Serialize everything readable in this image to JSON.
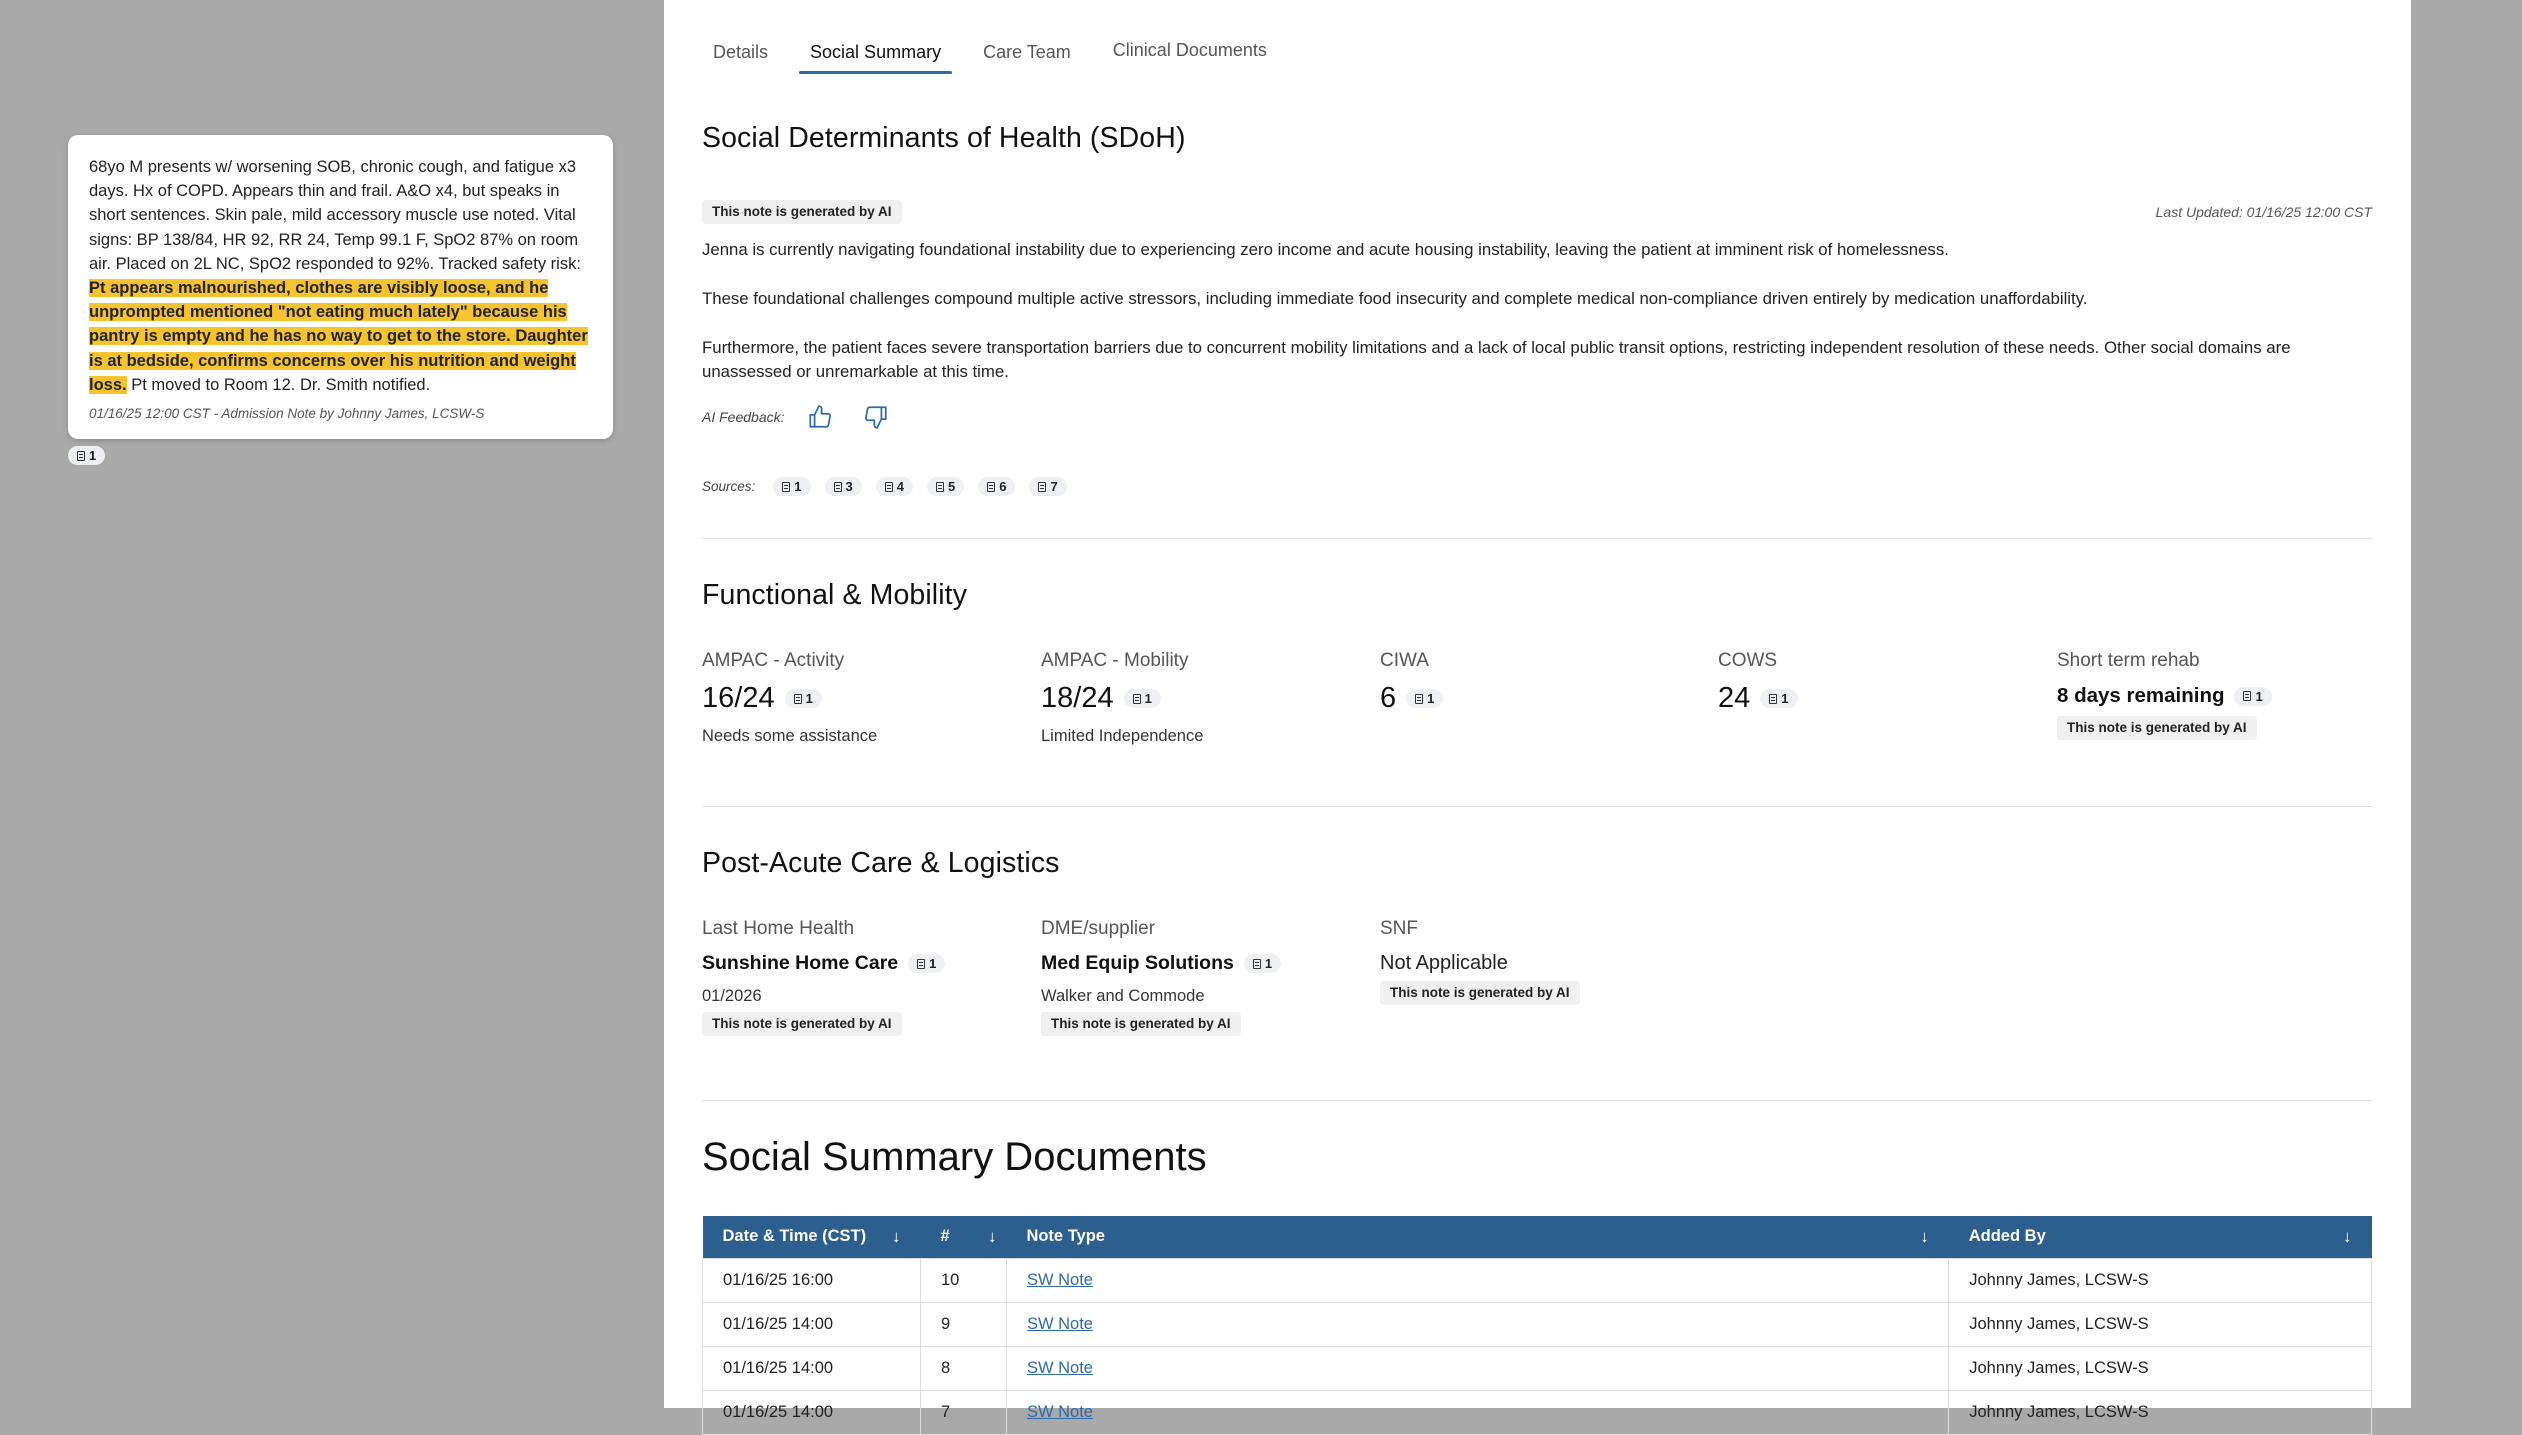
{
  "note_card": {
    "text_before": "68yo M presents w/ worsening SOB, chronic cough, and fatigue x3 days. Hx of COPD. Appears thin and frail. A&O x4, but speaks in short sentences. Skin pale, mild accessory muscle use noted. Vital signs: BP 138/84, HR 92, RR 24, Temp 99.1 F, SpO2 87% on room air. Placed on 2L NC, SpO2 responded to 92%. Tracked safety risk:",
    "highlight": "Pt appears malnourished, clothes are visibly loose, and he unprompted mentioned \"not eating much lately\" because his pantry is empty and he has no way to get to the store. Daughter is at bedside, confirms concerns over his nutrition and weight loss.",
    "text_after": "Pt moved to Room 12. Dr. Smith notified.",
    "meta": "01/16/25 12:00 CST - Admission Note by Johnny James, LCSW-S",
    "chip": "1"
  },
  "tabs": [
    "Details",
    "Social Summary",
    "Care Team",
    "Clinical Documents"
  ],
  "sdoh": {
    "title": "Social Determinants of Health (SDoH)",
    "ai_badge": "This note is generated by AI",
    "last_updated": "Last Updated: 01/16/25 12:00 CST",
    "paragraphs": [
      "Jenna is currently navigating foundational instability due to experiencing zero income and acute housing instability, leaving the patient at imminent risk of homelessness.",
      "These foundational challenges compound multiple active stressors, including immediate food insecurity and complete medical non-compliance driven entirely by medication unaffordability.",
      "Furthermore, the patient faces severe transportation barriers due to concurrent mobility limitations and a lack of local public transit options, restricting independent resolution of these needs. Other social domains are unassessed or unremarkable at this time."
    ],
    "feedback_label": "AI Feedback:",
    "sources_label": "Sources:",
    "sources": [
      "1",
      "3",
      "4",
      "5",
      "6",
      "7"
    ]
  },
  "functional": {
    "title": "Functional & Mobility",
    "items": [
      {
        "label": "AMPAC - Activity",
        "value": "16/24",
        "chip": "1",
        "sub": "Needs some assistance"
      },
      {
        "label": "AMPAC - Mobility",
        "value": "18/24",
        "chip": "1",
        "sub": "Limited Independence"
      },
      {
        "label": "CIWA",
        "value": "6",
        "chip": "1",
        "sub": ""
      },
      {
        "label": "COWS",
        "value": "24",
        "chip": "1",
        "sub": ""
      },
      {
        "label": "Short term rehab",
        "value": "8 days remaining",
        "chip": "1",
        "sub": "This note is generated by AI"
      }
    ]
  },
  "post_acute": {
    "title": "Post-Acute Care & Logistics",
    "items": [
      {
        "label": "Last Home Health",
        "value": "Sunshine Home Care",
        "chip": "1",
        "detail": "01/2026",
        "ai": "This note is generated by AI"
      },
      {
        "label": "DME/supplier",
        "value": "Med Equip Solutions",
        "chip": "1",
        "detail": "Walker and Commode",
        "ai": "This note is generated by AI"
      },
      {
        "label": "SNF",
        "value": "Not Applicable",
        "chip": "",
        "detail": "",
        "ai": "This note is generated by AI"
      }
    ]
  },
  "documents": {
    "title": "Social Summary Documents",
    "columns": [
      "Date & Time (CST)",
      "#",
      "Note Type",
      "Added By"
    ],
    "rows": [
      {
        "date": "01/16/25 16:00",
        "num": "10",
        "type": "SW Note",
        "by": "Johnny James, LCSW-S"
      },
      {
        "date": "01/16/25 14:00",
        "num": "9",
        "type": "SW Note",
        "by": "Johnny James, LCSW-S"
      },
      {
        "date": "01/16/25 14:00",
        "num": "8",
        "type": "SW Note",
        "by": "Johnny James, LCSW-S"
      },
      {
        "date": "01/16/25 14:00",
        "num": "7",
        "type": "SW Note",
        "by": "Johnny James, LCSW-S"
      }
    ]
  },
  "colors": {
    "accent": "#2f6aa8",
    "table_header": "#2d5f8e",
    "highlight": "#f7c42e",
    "backdrop": "#a9a9a9"
  }
}
